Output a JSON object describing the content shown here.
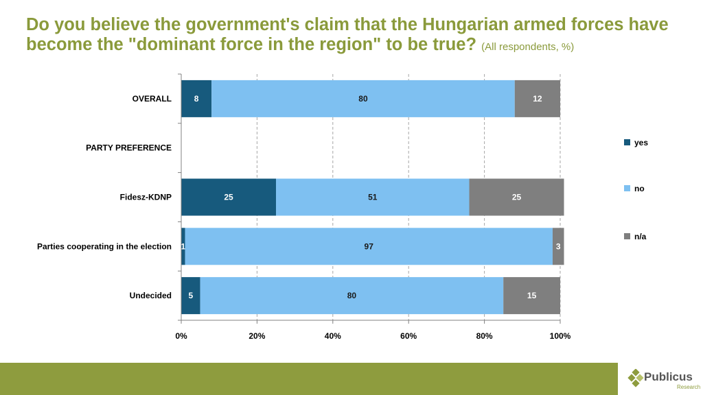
{
  "title": {
    "main": "Do you believe the government's claim that the Hungarian armed forces have become the \"dominant force in the region\" to be true?",
    "sub": "(All respondents, %)"
  },
  "chart_data": {
    "type": "bar",
    "orientation": "horizontal",
    "stacked": true,
    "categories": [
      "OVERALL",
      "PARTY PREFERENCE",
      "Fidesz-KDNP",
      "Parties cooperating  in the election",
      "Undecided"
    ],
    "series": [
      {
        "name": "yes",
        "values": [
          8,
          null,
          25,
          1,
          5
        ]
      },
      {
        "name": "no",
        "values": [
          80,
          null,
          51,
          97,
          80
        ]
      },
      {
        "name": "n/a",
        "values": [
          12,
          null,
          25,
          3,
          15
        ]
      }
    ],
    "data_labels": [
      [
        "8",
        "80",
        "12"
      ],
      [
        "",
        "",
        ""
      ],
      [
        "25",
        "51",
        "25"
      ],
      [
        "1",
        "97",
        "3"
      ],
      [
        "5",
        "80",
        "15"
      ]
    ],
    "xlim": [
      0,
      100
    ],
    "xticks": [
      0,
      20,
      40,
      60,
      80,
      100
    ],
    "xtick_labels": [
      "0%",
      "20%",
      "40%",
      "60%",
      "80%",
      "100%"
    ],
    "grid": true,
    "legend": "right",
    "colors": {
      "yes": "#175a7d",
      "no": "#7ec0f1",
      "n/a": "#7f7f7f"
    }
  },
  "footer": {
    "brand": "Publicus",
    "tagline": "Research",
    "bar_color": "#8e9c3e"
  }
}
